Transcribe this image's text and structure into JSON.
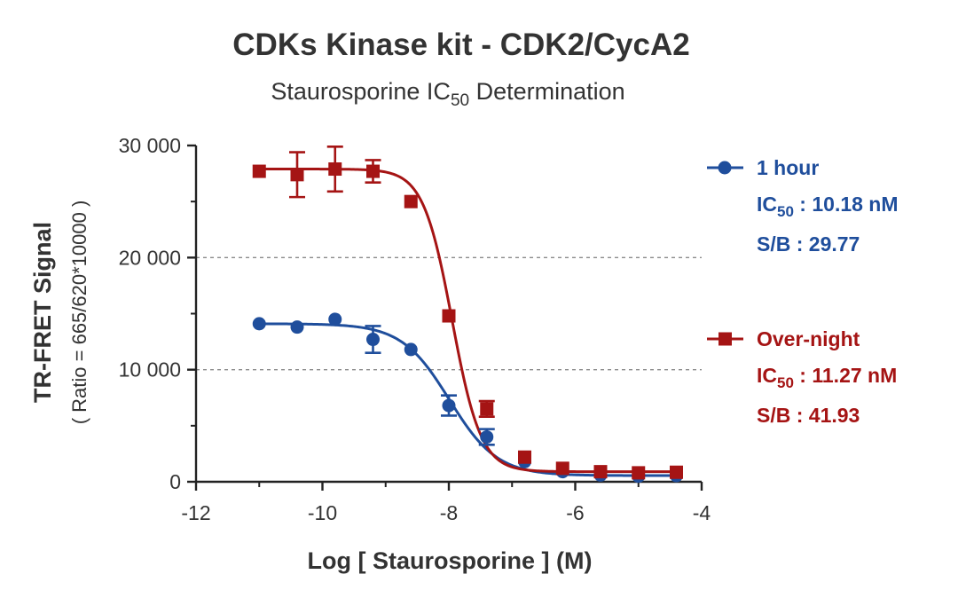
{
  "chart_data": {
    "type": "scatter",
    "title": "CDKs Kinase kit  -  CDK2/CycA2",
    "subtitle": {
      "prefix": "Staurosporine IC",
      "sub": "50",
      "suffix": " Determination"
    },
    "xlabel": "Log [ Staurosporine ]  (M)",
    "ylabel": "TR-FRET Signal",
    "ylabel_sub": "( Ratio = 665/620*10000 )",
    "xlim": [
      -12,
      -4
    ],
    "ylim": [
      0,
      30000
    ],
    "x_ticks": [
      -12,
      -10,
      -8,
      -6,
      -4
    ],
    "x_tick_labels": [
      "-12",
      "-10",
      "-8",
      "-6",
      "-4"
    ],
    "y_ticks": [
      0,
      10000,
      20000,
      30000
    ],
    "y_tick_labels": [
      "0",
      "10 000",
      "20 000",
      "30 000"
    ],
    "grid": {
      "y_dashed": [
        10000,
        20000
      ]
    },
    "legend_position": "right",
    "series": [
      {
        "name": "1 hour",
        "color": "#1f4e9c",
        "marker": "circle",
        "ic50_text": ": 10.18 nM",
        "sb_text": "S/B : 29.77",
        "fit": {
          "top": 14100,
          "bottom": 550,
          "logIC50": -7.992,
          "hill": 1.15
        },
        "points": [
          {
            "x": -11.0,
            "y": 14100,
            "err": 0
          },
          {
            "x": -10.4,
            "y": 13800,
            "err": 0
          },
          {
            "x": -9.8,
            "y": 14500,
            "err": 0
          },
          {
            "x": -9.2,
            "y": 12700,
            "err": 1200
          },
          {
            "x": -8.6,
            "y": 11800,
            "err": 0
          },
          {
            "x": -8.0,
            "y": 6800,
            "err": 900
          },
          {
            "x": -7.4,
            "y": 4000,
            "err": 700
          },
          {
            "x": -6.8,
            "y": 1800,
            "err": 0
          },
          {
            "x": -6.2,
            "y": 900,
            "err": 0
          },
          {
            "x": -5.6,
            "y": 600,
            "err": 0
          },
          {
            "x": -5.0,
            "y": 500,
            "err": 0
          },
          {
            "x": -4.4,
            "y": 550,
            "err": 0
          }
        ]
      },
      {
        "name": "Over-night",
        "color": "#a51414",
        "marker": "square",
        "ic50_text": ": 11.27 nM",
        "sb_text": "S/B : 41.93",
        "fit": {
          "top": 27900,
          "bottom": 900,
          "logIC50": -7.948,
          "hill": 1.9
        },
        "points": [
          {
            "x": -11.0,
            "y": 27700,
            "err": 0
          },
          {
            "x": -10.4,
            "y": 27400,
            "err": 2000
          },
          {
            "x": -9.8,
            "y": 27900,
            "err": 2000
          },
          {
            "x": -9.2,
            "y": 27700,
            "err": 1000
          },
          {
            "x": -8.6,
            "y": 25000,
            "err": 0
          },
          {
            "x": -8.0,
            "y": 14800,
            "err": 0
          },
          {
            "x": -7.4,
            "y": 6500,
            "err": 700
          },
          {
            "x": -6.8,
            "y": 2200,
            "err": 0
          },
          {
            "x": -6.2,
            "y": 1200,
            "err": 0
          },
          {
            "x": -5.6,
            "y": 900,
            "err": 0
          },
          {
            "x": -5.0,
            "y": 800,
            "err": 0
          },
          {
            "x": -4.4,
            "y": 850,
            "err": 0
          }
        ]
      }
    ]
  }
}
